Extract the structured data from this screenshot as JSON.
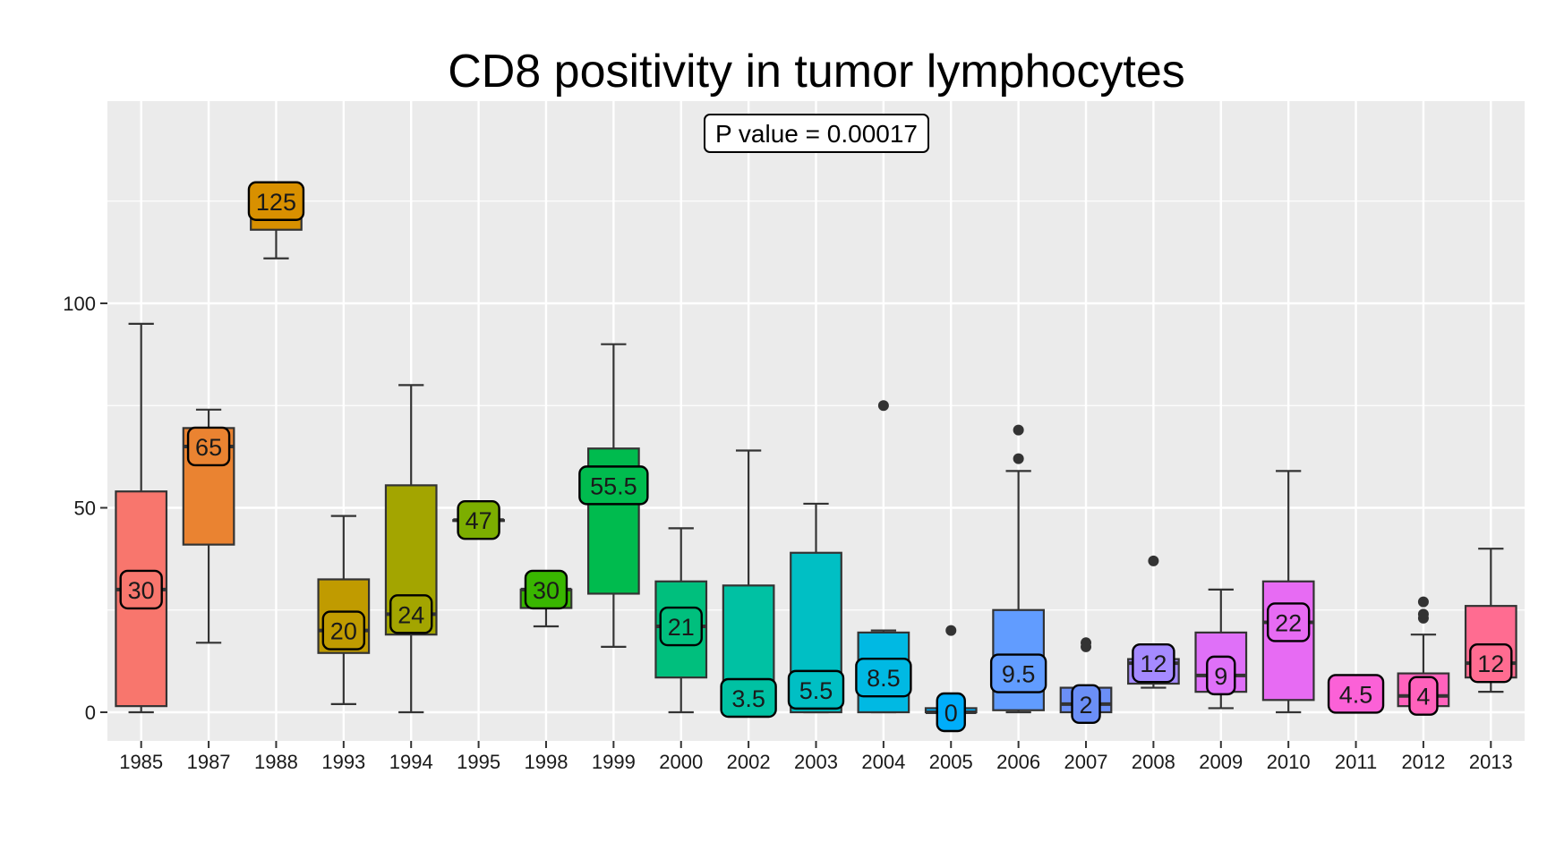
{
  "chart_data": {
    "type": "boxplot",
    "title": "CD8 positivity in tumor lymphocytes",
    "xlabel": "",
    "ylabel": "",
    "annotation": "P value = 0.00017",
    "ylim": [
      -7,
      148
    ],
    "y_ticks": [
      0,
      50,
      100
    ],
    "grid": true,
    "legend": "none",
    "panel_background": "#EBEBEB",
    "grid_color": "#FFFFFF",
    "categories": [
      "1985",
      "1987",
      "1988",
      "1993",
      "1994",
      "1995",
      "1998",
      "1999",
      "2000",
      "2002",
      "2003",
      "2004",
      "2005",
      "2006",
      "2007",
      "2008",
      "2009",
      "2010",
      "2011",
      "2012",
      "2013"
    ],
    "boxes": [
      {
        "category": "1985",
        "lower_whisker": 0,
        "q1": 1.5,
        "median": 30,
        "q3": 54,
        "upper_whisker": 95,
        "outliers": [],
        "median_label": "30",
        "color": "#F8766D"
      },
      {
        "category": "1987",
        "lower_whisker": 17,
        "q1": 41,
        "median": 65,
        "q3": 69.5,
        "upper_whisker": 74,
        "outliers": [],
        "median_label": "65",
        "color": "#EA8331"
      },
      {
        "category": "1988",
        "lower_whisker": 111,
        "q1": 118,
        "median": 125,
        "q3": 125,
        "upper_whisker": 125,
        "outliers": [],
        "median_label": "125",
        "color": "#D89000"
      },
      {
        "category": "1993",
        "lower_whisker": 2,
        "q1": 14.5,
        "median": 20,
        "q3": 32.5,
        "upper_whisker": 48,
        "outliers": [],
        "median_label": "20",
        "color": "#C09B00"
      },
      {
        "category": "1994",
        "lower_whisker": 0,
        "q1": 19,
        "median": 24,
        "q3": 55.5,
        "upper_whisker": 80,
        "outliers": [],
        "median_label": "24",
        "color": "#A3A500"
      },
      {
        "category": "1995",
        "lower_whisker": 47,
        "q1": 47,
        "median": 47,
        "q3": 47,
        "upper_whisker": 47,
        "outliers": [],
        "median_label": "47",
        "color": "#7CAE00"
      },
      {
        "category": "1998",
        "lower_whisker": 21,
        "q1": 25.5,
        "median": 30,
        "q3": 30,
        "upper_whisker": 30,
        "outliers": [],
        "median_label": "30",
        "color": "#39B600"
      },
      {
        "category": "1999",
        "lower_whisker": 16,
        "q1": 29,
        "median": 55.5,
        "q3": 64.5,
        "upper_whisker": 90,
        "outliers": [],
        "median_label": "55.5",
        "color": "#00BB4E"
      },
      {
        "category": "2000",
        "lower_whisker": 0,
        "q1": 8.5,
        "median": 21,
        "q3": 32,
        "upper_whisker": 45,
        "outliers": [],
        "median_label": "21",
        "color": "#00BF7D"
      },
      {
        "category": "2002",
        "lower_whisker": 0,
        "q1": 0,
        "median": 3.5,
        "q3": 31,
        "upper_whisker": 64,
        "outliers": [],
        "median_label": "3.5",
        "color": "#00C1A3"
      },
      {
        "category": "2003",
        "lower_whisker": 0,
        "q1": 0,
        "median": 5.5,
        "q3": 39,
        "upper_whisker": 51,
        "outliers": [],
        "median_label": "5.5",
        "color": "#00BFC4"
      },
      {
        "category": "2004",
        "lower_whisker": 0,
        "q1": 0,
        "median": 8.5,
        "q3": 19.5,
        "upper_whisker": 20,
        "outliers": [
          75
        ],
        "median_label": "8.5",
        "color": "#00B9E3"
      },
      {
        "category": "2005",
        "lower_whisker": 0,
        "q1": 0,
        "median": 0,
        "q3": 1,
        "upper_whisker": 1,
        "outliers": [
          20
        ],
        "median_label": "0",
        "color": "#00ADFA"
      },
      {
        "category": "2006",
        "lower_whisker": 0,
        "q1": 0.5,
        "median": 9.5,
        "q3": 25,
        "upper_whisker": 59,
        "outliers": [
          62,
          69
        ],
        "median_label": "9.5",
        "color": "#619CFF"
      },
      {
        "category": "2007",
        "lower_whisker": 0,
        "q1": 0,
        "median": 2,
        "q3": 6,
        "upper_whisker": 6,
        "outliers": [
          16,
          17
        ],
        "median_label": "2",
        "color": "#6B8FF7"
      },
      {
        "category": "2008",
        "lower_whisker": 6,
        "q1": 7,
        "median": 12,
        "q3": 13,
        "upper_whisker": 13,
        "outliers": [
          37
        ],
        "median_label": "12",
        "color": "#A58AFF"
      },
      {
        "category": "2009",
        "lower_whisker": 1,
        "q1": 5,
        "median": 9,
        "q3": 19.5,
        "upper_whisker": 30,
        "outliers": [],
        "median_label": "9",
        "color": "#DF70F8"
      },
      {
        "category": "2010",
        "lower_whisker": 0,
        "q1": 3,
        "median": 22,
        "q3": 32,
        "upper_whisker": 59,
        "outliers": [],
        "median_label": "22",
        "color": "#E76BF3"
      },
      {
        "category": "2011",
        "lower_whisker": 4.5,
        "q1": 4.5,
        "median": 4.5,
        "q3": 4.5,
        "upper_whisker": 4.5,
        "outliers": [],
        "median_label": "4.5",
        "color": "#FB61D7"
      },
      {
        "category": "2012",
        "lower_whisker": 0,
        "q1": 1.5,
        "median": 4,
        "q3": 9.5,
        "upper_whisker": 19,
        "outliers": [
          23,
          24,
          27
        ],
        "median_label": "4",
        "color": "#FF62BC"
      },
      {
        "category": "2013",
        "lower_whisker": 5,
        "q1": 8.5,
        "median": 12,
        "q3": 26,
        "upper_whisker": 40,
        "outliers": [],
        "median_label": "12",
        "color": "#FF6C91"
      }
    ]
  }
}
